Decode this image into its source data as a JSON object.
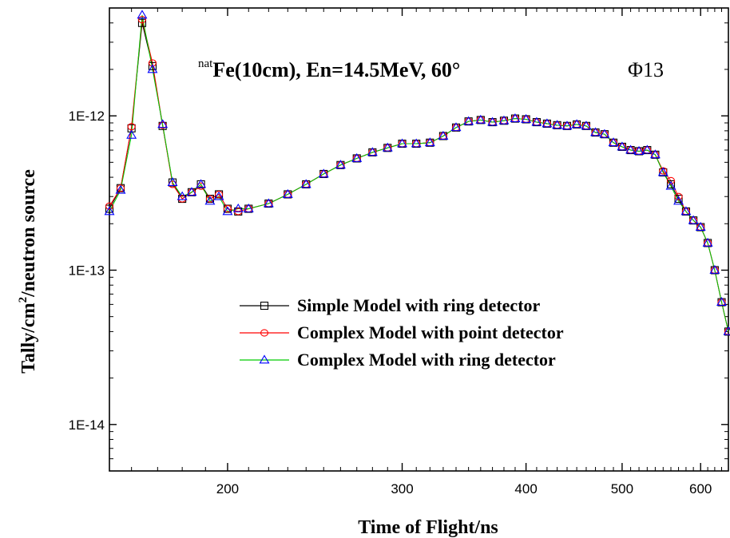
{
  "chart_data": {
    "type": "line",
    "xscale": "log",
    "yscale": "log",
    "xlim": [
      152,
      640
    ],
    "ylim": [
      5e-15,
      5e-12
    ],
    "xticks": [
      200,
      300,
      400,
      500,
      600
    ],
    "xtick_labels": [
      "200",
      "300",
      "400",
      "500",
      "600"
    ],
    "yticks": [
      1e-14,
      1e-13,
      1e-12
    ],
    "ytick_labels": [
      "1E-14",
      "1E-13",
      "1E-12"
    ],
    "xlabel": "Time of Flight/ns",
    "ylabel_parts": [
      "Tally/cm",
      "2",
      "/neutron source"
    ],
    "title_parts": [
      "nat",
      "Fe(10cm), En=14.5MeV, 60°"
    ],
    "annotation": "Φ13",
    "legend_position": "center",
    "grid": false,
    "series": [
      {
        "name": "Simple Model with ring detector",
        "color": "#000000",
        "marker": "square",
        "x": [
          152,
          156,
          160,
          164,
          168,
          172,
          176,
          180,
          184,
          188,
          192,
          196,
          200,
          205,
          210,
          220,
          230,
          240,
          250,
          260,
          270,
          280,
          290,
          300,
          310,
          320,
          330,
          340,
          350,
          360,
          370,
          380,
          390,
          400,
          410,
          420,
          430,
          440,
          450,
          460,
          470,
          480,
          490,
          500,
          510,
          520,
          530,
          540,
          550,
          560,
          570,
          580,
          590,
          600,
          610,
          620,
          630,
          640
        ],
        "y": [
          2.5e-13,
          3.4e-13,
          8.3e-13,
          4e-12,
          2.1e-12,
          8.6e-13,
          3.7e-13,
          2.9e-13,
          3.2e-13,
          3.6e-13,
          2.9e-13,
          3.1e-13,
          2.5e-13,
          2.4e-13,
          2.5e-13,
          2.7e-13,
          3.1e-13,
          3.6e-13,
          4.2e-13,
          4.8e-13,
          5.3e-13,
          5.8e-13,
          6.2e-13,
          6.6e-13,
          6.6e-13,
          6.7e-13,
          7.4e-13,
          8.4e-13,
          9.2e-13,
          9.4e-13,
          9.1e-13,
          9.3e-13,
          9.6e-13,
          9.5e-13,
          9.1e-13,
          8.9e-13,
          8.7e-13,
          8.6e-13,
          8.8e-13,
          8.6e-13,
          7.8e-13,
          7.6e-13,
          6.7e-13,
          6.3e-13,
          6e-13,
          5.9e-13,
          6e-13,
          5.6e-13,
          4.3e-13,
          3.6e-13,
          2.9e-13,
          2.4e-13,
          2.1e-13,
          1.9e-13,
          1.5e-13,
          1e-13,
          6.2e-14,
          4e-14
        ]
      },
      {
        "name": "Complex Model with point detector",
        "color": "#ff0000",
        "marker": "circle",
        "x": [
          152,
          156,
          160,
          164,
          168,
          172,
          176,
          180,
          184,
          188,
          192,
          196,
          200,
          205,
          210,
          220,
          230,
          240,
          250,
          260,
          270,
          280,
          290,
          300,
          310,
          320,
          330,
          340,
          350,
          360,
          370,
          380,
          390,
          400,
          410,
          420,
          430,
          440,
          450,
          460,
          470,
          480,
          490,
          500,
          510,
          520,
          530,
          540,
          550,
          560,
          570,
          580,
          590,
          600,
          610,
          620,
          630,
          640
        ],
        "y": [
          2.6e-13,
          3.4e-13,
          8.5e-13,
          4.2e-12,
          2.2e-12,
          8.7e-13,
          3.6e-13,
          2.9e-13,
          3.2e-13,
          3.5e-13,
          2.9e-13,
          3.1e-13,
          2.5e-13,
          2.4e-13,
          2.5e-13,
          2.7e-13,
          3.1e-13,
          3.6e-13,
          4.2e-13,
          4.8e-13,
          5.3e-13,
          5.8e-13,
          6.2e-13,
          6.6e-13,
          6.6e-13,
          6.7e-13,
          7.4e-13,
          8.4e-13,
          9.2e-13,
          9.4e-13,
          9.1e-13,
          9.3e-13,
          9.6e-13,
          9.5e-13,
          9.1e-13,
          8.9e-13,
          8.7e-13,
          8.6e-13,
          8.8e-13,
          8.6e-13,
          7.8e-13,
          7.6e-13,
          6.7e-13,
          6.3e-13,
          6e-13,
          5.9e-13,
          6e-13,
          5.6e-13,
          4.4e-13,
          3.8e-13,
          3e-13,
          2.4e-13,
          2.1e-13,
          1.9e-13,
          1.5e-13,
          1e-13,
          6.2e-14,
          4e-14
        ]
      },
      {
        "name": "Complex Model with ring detector",
        "color": "#00cc00",
        "marker": "triangle",
        "x": [
          152,
          156,
          160,
          164,
          168,
          172,
          176,
          180,
          184,
          188,
          192,
          196,
          200,
          205,
          210,
          220,
          230,
          240,
          250,
          260,
          270,
          280,
          290,
          300,
          310,
          320,
          330,
          340,
          350,
          360,
          370,
          380,
          390,
          400,
          410,
          420,
          430,
          440,
          450,
          460,
          470,
          480,
          490,
          500,
          510,
          520,
          530,
          540,
          550,
          560,
          570,
          580,
          590,
          600,
          610,
          620,
          630,
          640
        ],
        "y": [
          2.4e-13,
          3.3e-13,
          7.5e-13,
          4.5e-12,
          2e-12,
          8.8e-13,
          3.7e-13,
          3e-13,
          3.2e-13,
          3.6e-13,
          2.8e-13,
          3e-13,
          2.4e-13,
          2.5e-13,
          2.5e-13,
          2.7e-13,
          3.1e-13,
          3.6e-13,
          4.2e-13,
          4.8e-13,
          5.3e-13,
          5.8e-13,
          6.2e-13,
          6.6e-13,
          6.6e-13,
          6.7e-13,
          7.4e-13,
          8.4e-13,
          9.2e-13,
          9.4e-13,
          9.1e-13,
          9.3e-13,
          9.6e-13,
          9.5e-13,
          9.1e-13,
          8.9e-13,
          8.7e-13,
          8.6e-13,
          8.8e-13,
          8.6e-13,
          7.8e-13,
          7.6e-13,
          6.7e-13,
          6.3e-13,
          6e-13,
          5.9e-13,
          6e-13,
          5.6e-13,
          4.3e-13,
          3.5e-13,
          2.8e-13,
          2.4e-13,
          2.1e-13,
          1.9e-13,
          1.5e-13,
          1e-13,
          6.2e-14,
          4e-14
        ]
      }
    ]
  }
}
